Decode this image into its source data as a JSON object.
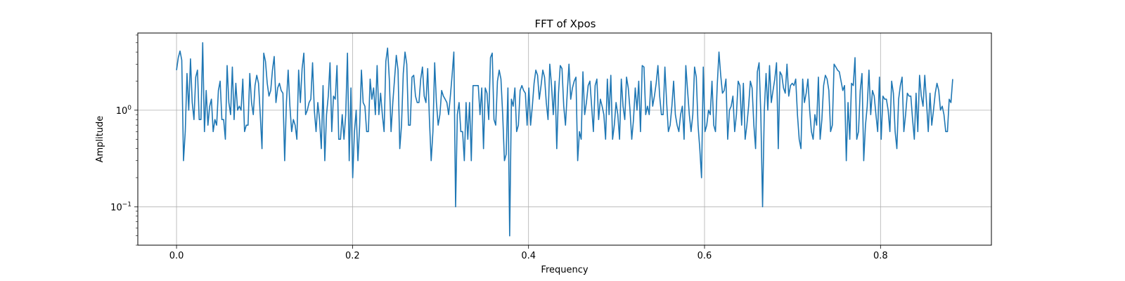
{
  "chart_data": {
    "type": "line",
    "title": "FFT of Xpos",
    "xlabel": "Frequency",
    "ylabel": "Amplitude",
    "xlim": [
      -0.044,
      0.926
    ],
    "ylim": [
      0.04,
      6.3
    ],
    "yscale": "log",
    "grid": true,
    "xticks": [
      0.0,
      0.2,
      0.4,
      0.6,
      0.8
    ],
    "xtick_labels": [
      "0.0",
      "0.2",
      "0.4",
      "0.6",
      "0.8"
    ],
    "yticks": [
      0.1,
      1
    ],
    "ytick_base": "10",
    "ytick_exponents": [
      "−1",
      "0"
    ],
    "series": [
      {
        "color": "#1f77b4",
        "x_start": 0.0,
        "x_end": 0.882,
        "values": [
          2.6,
          3.5,
          4.1,
          3.3,
          0.3,
          0.6,
          2.4,
          1.0,
          3.4,
          1.2,
          0.8,
          2.2,
          2.6,
          0.8,
          0.8,
          5.0,
          0.6,
          1.6,
          0.7,
          1.1,
          1.3,
          0.6,
          0.8,
          0.7,
          1.6,
          2.0,
          0.8,
          0.8,
          0.5,
          2.9,
          1.2,
          0.9,
          2.8,
          0.8,
          1.9,
          1.0,
          1.1,
          1.0,
          2.1,
          0.6,
          0.7,
          0.7,
          2.4,
          1.2,
          0.9,
          1.8,
          2.3,
          1.9,
          0.9,
          0.4,
          3.9,
          3.2,
          1.9,
          1.4,
          1.6,
          2.6,
          3.6,
          1.2,
          1.7,
          1.9,
          1.6,
          1.5,
          0.3,
          1.2,
          2.6,
          1.1,
          0.6,
          0.8,
          0.7,
          0.5,
          2.6,
          1.2,
          2.7,
          3.9,
          0.9,
          1.0,
          1.2,
          1.3,
          3.1,
          1.0,
          0.6,
          1.2,
          0.8,
          0.4,
          1.8,
          0.3,
          0.9,
          1.4,
          3.1,
          0.6,
          1.4,
          1.3,
          2.9,
          0.5,
          0.5,
          0.9,
          0.5,
          0.9,
          3.9,
          0.3,
          1.7,
          0.2,
          0.6,
          1.0,
          0.3,
          0.7,
          2.6,
          1.2,
          1.1,
          0.6,
          0.6,
          2.1,
          1.3,
          1.7,
          0.9,
          2.9,
          0.9,
          1.5,
          0.9,
          0.6,
          3.2,
          4.4,
          2.1,
          0.6,
          1.2,
          2.1,
          3.7,
          2.6,
          0.4,
          0.7,
          2.4,
          4.0,
          3.0,
          0.7,
          0.7,
          2.2,
          2.3,
          1.4,
          1.2,
          1.2,
          2.1,
          2.8,
          1.4,
          1.2,
          2.7,
          0.8,
          0.3,
          0.6,
          3.1,
          1.2,
          0.7,
          0.9,
          1.6,
          1.4,
          1.3,
          1.2,
          0.9,
          1.4,
          2.3,
          4.0,
          0.1,
          0.9,
          1.2,
          0.6,
          0.6,
          0.3,
          1.2,
          0.5,
          1.2,
          0.3,
          1.8,
          1.8,
          1.8,
          1.8,
          0.9,
          1.7,
          0.4,
          1.7,
          1.5,
          0.8,
          3.5,
          3.9,
          0.8,
          0.7,
          2.0,
          2.6,
          2.1,
          0.9,
          0.3,
          0.35,
          1.7,
          0.05,
          1.3,
          1.1,
          1.7,
          0.6,
          0.7,
          1.6,
          1.8,
          1.6,
          1.5,
          0.7,
          1.7,
          0.7,
          1.1,
          1.9,
          2.6,
          2.3,
          1.3,
          1.8,
          2.6,
          2.2,
          1.2,
          0.8,
          3.0,
          1.8,
          0.9,
          2.0,
          0.4,
          1.5,
          2.9,
          2.7,
          1.1,
          0.7,
          1.5,
          3.0,
          1.3,
          1.7,
          2.0,
          2.2,
          0.3,
          0.6,
          0.5,
          2.5,
          0.9,
          1.2,
          1.8,
          2.0,
          1.1,
          0.6,
          1.8,
          2.1,
          0.8,
          1.3,
          1.1,
          0.9,
          0.5,
          2.1,
          0.9,
          2.3,
          0.5,
          0.7,
          1.2,
          0.9,
          0.5,
          2.1,
          1.1,
          0.8,
          2.2,
          1.7,
          1.0,
          0.5,
          0.8,
          1.7,
          1.0,
          2.0,
          0.6,
          2.9,
          2.8,
          0.9,
          1.1,
          0.9,
          2.0,
          1.1,
          1.4,
          1.9,
          2.9,
          1.4,
          0.9,
          0.9,
          2.8,
          1.2,
          0.6,
          0.7,
          1.1,
          2.0,
          0.9,
          0.7,
          0.6,
          0.9,
          1.1,
          0.5,
          2.9,
          1.6,
          0.9,
          0.6,
          0.9,
          2.8,
          2.2,
          0.7,
          0.4,
          0.2,
          2.8,
          0.6,
          0.7,
          1.0,
          0.9,
          2.0,
          0.7,
          0.6,
          1.8,
          4.0,
          2.3,
          1.5,
          1.6,
          2.1,
          0.5,
          1.0,
          1.1,
          1.4,
          0.6,
          0.9,
          2.0,
          1.8,
          0.7,
          1.9,
          0.5,
          0.7,
          1.1,
          2.0,
          1.7,
          0.7,
          0.4,
          2.5,
          3.1,
          0.9,
          0.1,
          1.0,
          2.4,
          1.0,
          2.9,
          1.2,
          1.6,
          2.1,
          3.1,
          0.4,
          2.5,
          2.3,
          1.7,
          1.5,
          3.0,
          1.4,
          1.8,
          1.9,
          1.8,
          2.1,
          0.9,
          0.5,
          0.4,
          2.1,
          1.2,
          1.5,
          2.1,
          1.0,
          0.6,
          0.5,
          0.9,
          0.7,
          2.2,
          0.5,
          0.8,
          1.8,
          2.3,
          2.1,
          1.6,
          0.6,
          0.7,
          3.0,
          2.8,
          2.6,
          2.5,
          2.0,
          1.6,
          1.8,
          0.3,
          1.2,
          0.5,
          1.9,
          1.8,
          3.5,
          0.5,
          0.6,
          1.6,
          2.4,
          0.3,
          0.7,
          1.1,
          2.6,
          0.9,
          1.6,
          1.4,
          0.9,
          0.6,
          2.2,
          0.5,
          1.4,
          1.3,
          1.3,
          1.0,
          0.6,
          2.0,
          1.5,
          0.6,
          0.4,
          1.3,
          1.8,
          2.2,
          0.6,
          0.9,
          1.5,
          1.4,
          1.4,
          0.8,
          0.5,
          1.5,
          0.6,
          2.3,
          1.4,
          1.1,
          2.3,
          1.2,
          0.6,
          1.5,
          0.7,
          1.0,
          1.5,
          1.9,
          1.6,
          1.0,
          1.1,
          0.9,
          0.6,
          0.6,
          1.3,
          1.2,
          2.1
        ]
      }
    ]
  }
}
